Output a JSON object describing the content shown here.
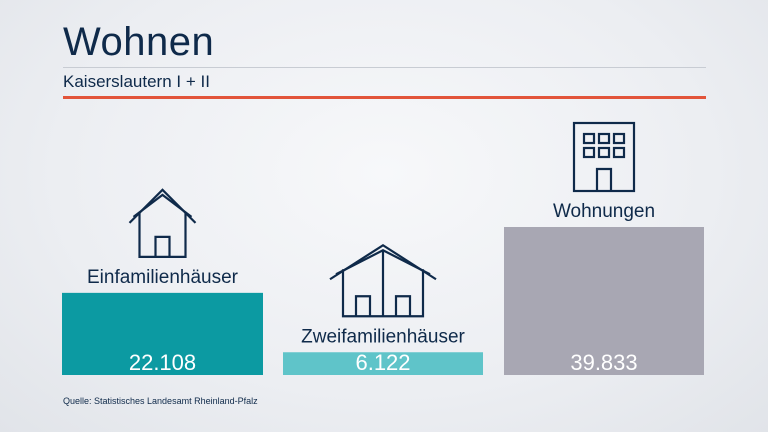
{
  "header": {
    "title": "Wohnen",
    "subtitle": "Kaiserslautern I + II"
  },
  "footer": {
    "source": "Quelle: Statistisches Landesamt Rheinland-Pfalz"
  },
  "colors": {
    "accent_red": "#e2543a",
    "text_dark": "#0f2a4a"
  },
  "chart_data": {
    "type": "bar",
    "categories": [
      "Einfamilienhäuser",
      "Zweifamilienhäuser",
      "Wohnungen"
    ],
    "values": [
      22108,
      6122,
      39833
    ],
    "value_labels": [
      "22.108",
      "6.122",
      "39.833"
    ],
    "bar_colors": [
      "#0c9aa2",
      "#5fc4c9",
      "#a8a7b3"
    ],
    "icons": [
      "house-icon",
      "two-family-house-icon",
      "apartment-building-icon"
    ],
    "grid": false,
    "legend": "none"
  }
}
